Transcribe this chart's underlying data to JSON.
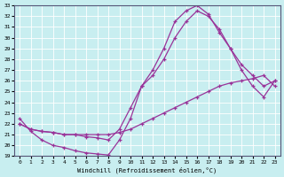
{
  "xlabel": "Windchill (Refroidissement éolien,°C)",
  "bg_color": "#c8eef0",
  "grid_color": "#ffffff",
  "line_color": "#993399",
  "xlim": [
    -0.5,
    23.5
  ],
  "ylim": [
    19,
    33
  ],
  "xticks": [
    0,
    1,
    2,
    3,
    4,
    5,
    6,
    7,
    8,
    9,
    10,
    11,
    12,
    13,
    14,
    15,
    16,
    17,
    18,
    19,
    20,
    21,
    22,
    23
  ],
  "yticks": [
    19,
    20,
    21,
    22,
    23,
    24,
    25,
    26,
    27,
    28,
    29,
    30,
    31,
    32,
    33
  ],
  "curve1_x": [
    0,
    1,
    2,
    3,
    4,
    5,
    6,
    7,
    8,
    9,
    10,
    11,
    12,
    13,
    14,
    15,
    16,
    17,
    18,
    19,
    20,
    21,
    22,
    23
  ],
  "curve1_y": [
    22.5,
    21.3,
    20.5,
    20.0,
    19.8,
    19.5,
    19.3,
    19.2,
    19.1,
    20.5,
    22.5,
    25.5,
    27.0,
    29.0,
    31.5,
    32.5,
    33.0,
    32.2,
    30.5,
    29.0,
    27.5,
    26.5,
    25.5,
    26.0
  ],
  "curve2_x": [
    0,
    1,
    2,
    3,
    4,
    5,
    6,
    7,
    8,
    9,
    10,
    11,
    12,
    13,
    14,
    15,
    16,
    17,
    18,
    19,
    20,
    21,
    22,
    23
  ],
  "curve2_y": [
    22.0,
    21.5,
    21.3,
    21.2,
    21.0,
    21.0,
    20.8,
    20.7,
    20.5,
    21.5,
    23.5,
    25.5,
    26.5,
    28.0,
    30.0,
    31.5,
    32.5,
    32.0,
    30.8,
    29.0,
    27.0,
    25.5,
    24.5,
    26.0
  ],
  "curve3_x": [
    0,
    1,
    2,
    3,
    4,
    5,
    6,
    7,
    8,
    9,
    10,
    11,
    12,
    13,
    14,
    15,
    16,
    17,
    18,
    19,
    20,
    21,
    22,
    23
  ],
  "curve3_y": [
    22.0,
    21.5,
    21.3,
    21.2,
    21.0,
    21.0,
    21.0,
    21.0,
    21.0,
    21.2,
    21.5,
    22.0,
    22.5,
    23.0,
    23.5,
    24.0,
    24.5,
    25.0,
    25.5,
    25.8,
    26.0,
    26.2,
    26.5,
    25.5
  ]
}
